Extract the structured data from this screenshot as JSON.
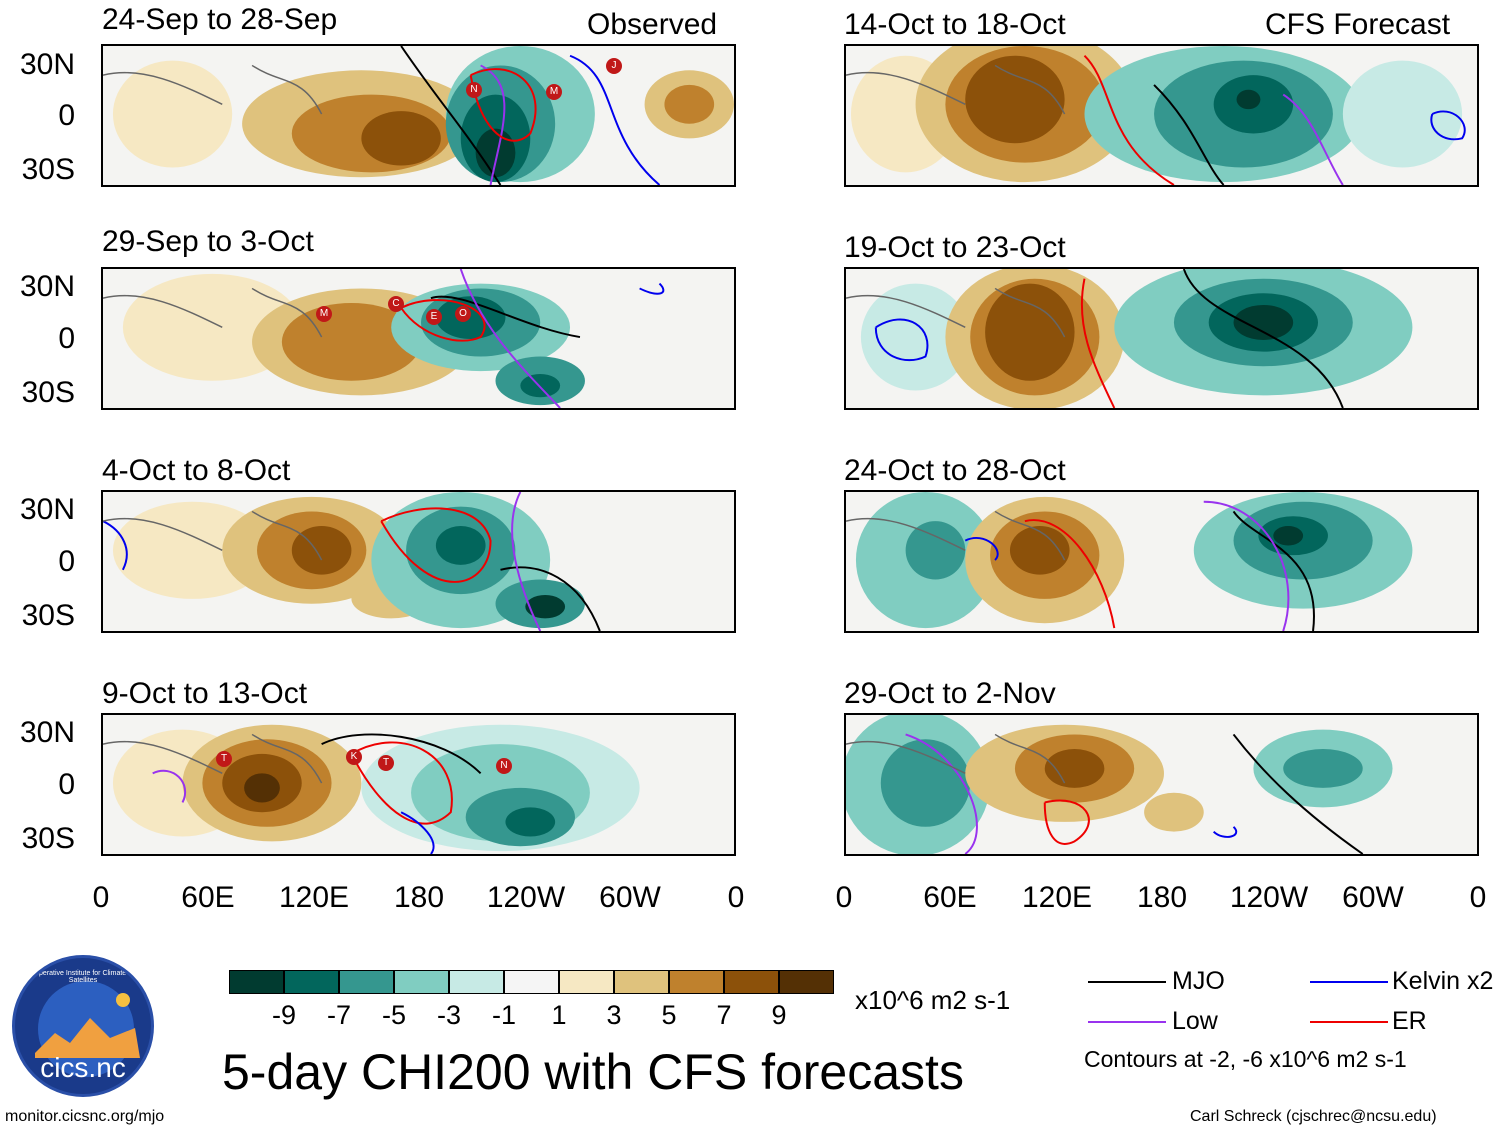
{
  "title": "5-day CHI200 with CFS forecasts",
  "left_header_label": "Observed",
  "right_header_label": "CFS Forecast",
  "observed_panels": [
    {
      "period": "24-Sep to 28-Sep",
      "storms": [
        "N",
        "M",
        "J"
      ]
    },
    {
      "period": "29-Sep to 3-Oct",
      "storms": [
        "M",
        "C",
        "E",
        "O"
      ]
    },
    {
      "period": "4-Oct to 8-Oct",
      "storms": []
    },
    {
      "period": "9-Oct to 13-Oct",
      "storms": [
        "T",
        "K",
        "T",
        "N"
      ]
    }
  ],
  "forecast_panels": [
    {
      "period": "14-Oct to 18-Oct"
    },
    {
      "period": "19-Oct to 23-Oct"
    },
    {
      "period": "24-Oct to 28-Oct"
    },
    {
      "period": "29-Oct to 2-Nov"
    }
  ],
  "lat_labels": [
    "30N",
    "0",
    "30S"
  ],
  "lon_labels": [
    "0",
    "60E",
    "120E",
    "180",
    "120W",
    "60W",
    "0"
  ],
  "colorbar": {
    "colors": [
      "#013b30",
      "#02665c",
      "#35978f",
      "#80cdc1",
      "#c7eae5",
      "#f5f5f5",
      "#f6e8c3",
      "#dfc27d",
      "#bf812d",
      "#8c510a",
      "#543005"
    ],
    "ticks": [
      "-9",
      "-7",
      "-5",
      "-3",
      "-1",
      "1",
      "3",
      "5",
      "7",
      "9"
    ],
    "units": "x10^6 m2 s-1"
  },
  "legend": {
    "items": [
      {
        "label": "MJO",
        "color": "#000000"
      },
      {
        "label": "Kelvin x2",
        "color": "#0000ee"
      },
      {
        "label": "Low",
        "color": "#9933ee"
      },
      {
        "label": "ER",
        "color": "#ee0000"
      }
    ],
    "note": "Contours at -2, -6 x10^6 m2 s-1"
  },
  "logo_text": "cics.nc",
  "logo_ring_text": "Cooperative Institute for Climate and Satellites",
  "footer_left": "monitor.cicsnc.org/mjo",
  "footer_right": "Carl Schreck (cjschrec@ncsu.edu)"
}
